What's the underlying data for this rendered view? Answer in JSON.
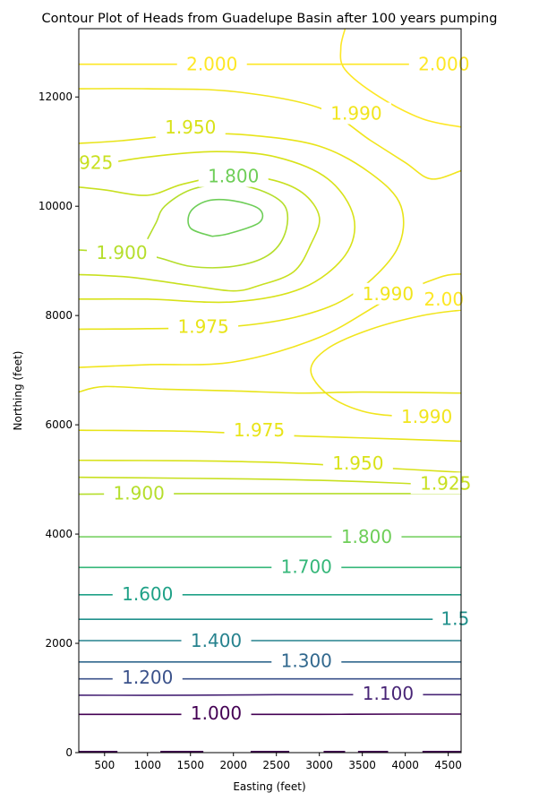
{
  "chart_data": {
    "type": "contour",
    "title": "Contour Plot of Heads from Guadelupe Basin after 100 years pumping",
    "xlabel": "Easting (feet)",
    "ylabel": "Northing (feet)",
    "xlim": [
      200,
      4650
    ],
    "ylim": [
      0,
      13250
    ],
    "xticks": [
      500,
      1000,
      1500,
      2000,
      2500,
      3000,
      3500,
      4000,
      4500
    ],
    "yticks": [
      0,
      2000,
      4000,
      6000,
      8000,
      10000,
      12000
    ],
    "grid": false,
    "colormap": "viridis",
    "colors": {
      "1.000": "#440154",
      "1.100": "#482576",
      "1.200": "#3b528b",
      "1.300": "#31688e",
      "1.400": "#26828e",
      "1.500": "#21918c",
      "1.600": "#1fa187",
      "1.700": "#35b779",
      "1.800": "#6ece58",
      "1.900": "#b5de2b",
      "1.925": "#c8e020",
      "1.950": "#d8e219",
      "1.975": "#e8e419",
      "1.990": "#f1e51d",
      "2.000": "#fde725"
    },
    "contours": [
      {
        "level": "1.000",
        "points": [
          [
            200,
            700
          ],
          [
            1000,
            700
          ],
          [
            2000,
            700
          ],
          [
            3000,
            700
          ],
          [
            4000,
            705
          ],
          [
            4650,
            705
          ]
        ]
      },
      {
        "level": "1.100",
        "points": [
          [
            200,
            1050
          ],
          [
            1500,
            1050
          ],
          [
            2500,
            1060
          ],
          [
            3500,
            1060
          ],
          [
            4650,
            1060
          ]
        ]
      },
      {
        "level": "1.200",
        "points": [
          [
            200,
            1350
          ],
          [
            1500,
            1350
          ],
          [
            2500,
            1350
          ],
          [
            3500,
            1350
          ],
          [
            4650,
            1350
          ]
        ]
      },
      {
        "level": "1.300",
        "points": [
          [
            200,
            1660
          ],
          [
            1500,
            1660
          ],
          [
            2500,
            1660
          ],
          [
            3500,
            1660
          ],
          [
            4650,
            1660
          ]
        ]
      },
      {
        "level": "1.400",
        "points": [
          [
            200,
            2050
          ],
          [
            1500,
            2050
          ],
          [
            2500,
            2050
          ],
          [
            3500,
            2050
          ],
          [
            4650,
            2050
          ]
        ]
      },
      {
        "level": "1.500",
        "points": [
          [
            200,
            2440
          ],
          [
            1500,
            2440
          ],
          [
            2500,
            2440
          ],
          [
            3500,
            2440
          ],
          [
            4650,
            2440
          ]
        ]
      },
      {
        "level": "1.600",
        "points": [
          [
            200,
            2890
          ],
          [
            1500,
            2890
          ],
          [
            2500,
            2890
          ],
          [
            3500,
            2890
          ],
          [
            4650,
            2890
          ]
        ]
      },
      {
        "level": "1.700",
        "points": [
          [
            200,
            3390
          ],
          [
            1500,
            3390
          ],
          [
            2500,
            3390
          ],
          [
            3500,
            3390
          ],
          [
            4650,
            3390
          ]
        ]
      },
      {
        "level": "1.800",
        "points": [
          [
            200,
            3950
          ],
          [
            1500,
            3950
          ],
          [
            2500,
            3950
          ],
          [
            3500,
            3950
          ],
          [
            4650,
            3950
          ]
        ]
      },
      {
        "level": "1.900",
        "points": [
          [
            200,
            4730
          ],
          [
            1500,
            4740
          ],
          [
            2500,
            4740
          ],
          [
            3500,
            4740
          ],
          [
            4650,
            4740
          ]
        ]
      },
      {
        "level": "1.925",
        "points": [
          [
            200,
            5040
          ],
          [
            1500,
            5020
          ],
          [
            2500,
            5000
          ],
          [
            3500,
            4960
          ],
          [
            4650,
            4880
          ]
        ]
      },
      {
        "level": "1.950",
        "points": [
          [
            200,
            5350
          ],
          [
            1500,
            5340
          ],
          [
            2500,
            5310
          ],
          [
            3500,
            5230
          ],
          [
            4650,
            5130
          ]
        ]
      },
      {
        "level": "1.975",
        "points": [
          [
            200,
            5900
          ],
          [
            1500,
            5880
          ],
          [
            2500,
            5810
          ],
          [
            3500,
            5760
          ],
          [
            4650,
            5700
          ]
        ]
      },
      {
        "level": "1.990",
        "points": [
          [
            4650,
            6130
          ],
          [
            4000,
            6150
          ],
          [
            3500,
            6250
          ],
          [
            3100,
            6550
          ],
          [
            2900,
            7000
          ],
          [
            3100,
            7400
          ],
          [
            3600,
            7750
          ],
          [
            4200,
            8000
          ],
          [
            4650,
            8100
          ]
        ]
      },
      {
        "level": "1.975",
        "points": [
          [
            200,
            6600
          ],
          [
            500,
            6700
          ],
          [
            1200,
            6650
          ],
          [
            2000,
            6620
          ],
          [
            2800,
            6580
          ],
          [
            3500,
            6600
          ],
          [
            4650,
            6580
          ]
        ]
      },
      {
        "level": "1.990",
        "points": [
          [
            200,
            7050
          ],
          [
            1000,
            7100
          ],
          [
            2000,
            7150
          ],
          [
            3000,
            7600
          ],
          [
            3800,
            8300
          ],
          [
            4400,
            8700
          ],
          [
            4650,
            8760
          ]
        ]
      },
      {
        "level": "1.975",
        "points": [
          [
            200,
            7750
          ],
          [
            1000,
            7760
          ],
          [
            2000,
            7800
          ],
          [
            2800,
            8000
          ],
          [
            3400,
            8400
          ],
          [
            3900,
            9200
          ],
          [
            3950,
            10000
          ],
          [
            3600,
            10600
          ],
          [
            3000,
            11100
          ],
          [
            2200,
            11300
          ],
          [
            1500,
            11320
          ],
          [
            700,
            11200
          ],
          [
            200,
            11150
          ]
        ]
      },
      {
        "level": "1.950",
        "points": [
          [
            200,
            8300
          ],
          [
            1000,
            8300
          ],
          [
            2000,
            8250
          ],
          [
            2800,
            8500
          ],
          [
            3300,
            9100
          ],
          [
            3400,
            9800
          ],
          [
            3100,
            10500
          ],
          [
            2500,
            10900
          ],
          [
            1800,
            11000
          ],
          [
            1000,
            10900
          ],
          [
            200,
            10700
          ]
        ]
      },
      {
        "level": "1.925",
        "points": [
          [
            200,
            8750
          ],
          [
            800,
            8700
          ],
          [
            1500,
            8550
          ],
          [
            2000,
            8450
          ],
          [
            2300,
            8550
          ],
          [
            2700,
            8800
          ],
          [
            2900,
            9300
          ],
          [
            3000,
            9800
          ],
          [
            2800,
            10250
          ],
          [
            2400,
            10500
          ],
          [
            1900,
            10550
          ],
          [
            1400,
            10400
          ],
          [
            1000,
            10200
          ],
          [
            500,
            10300
          ],
          [
            200,
            10350
          ]
        ]
      },
      {
        "level": "1.900",
        "points": [
          [
            200,
            9200
          ],
          [
            1000,
            9100
          ],
          [
            1500,
            8900
          ],
          [
            2000,
            8900
          ],
          [
            2400,
            9100
          ],
          [
            2600,
            9500
          ],
          [
            2600,
            10000
          ],
          [
            2300,
            10300
          ],
          [
            1900,
            10400
          ],
          [
            1500,
            10300
          ],
          [
            1200,
            10000
          ],
          [
            1100,
            9700
          ],
          [
            1000,
            9400
          ]
        ]
      },
      {
        "level": "1.800",
        "points": [
          [
            1750,
            9450
          ],
          [
            1950,
            9500
          ],
          [
            2300,
            9700
          ],
          [
            2300,
            9950
          ],
          [
            2000,
            10100
          ],
          [
            1700,
            10100
          ],
          [
            1500,
            9900
          ],
          [
            1500,
            9600
          ],
          [
            1750,
            9450
          ]
        ]
      },
      {
        "level": "1.990",
        "points": [
          [
            200,
            12150
          ],
          [
            1000,
            12150
          ],
          [
            2000,
            12100
          ],
          [
            3000,
            11800
          ],
          [
            3600,
            11200
          ],
          [
            4000,
            10800
          ],
          [
            4300,
            10500
          ],
          [
            4650,
            10650
          ]
        ]
      },
      {
        "level": "2.000",
        "points": [
          [
            200,
            12600
          ],
          [
            1000,
            12600
          ],
          [
            2000,
            12600
          ],
          [
            3000,
            12600
          ],
          [
            4000,
            12600
          ],
          [
            4650,
            12600
          ]
        ]
      },
      {
        "level": "2.000",
        "points": [
          [
            3300,
            13250
          ],
          [
            3250,
            12900
          ],
          [
            3300,
            12500
          ],
          [
            3700,
            12000
          ],
          [
            4200,
            11600
          ],
          [
            4650,
            11450
          ]
        ]
      }
    ],
    "labels": [
      {
        "text": "2.000",
        "x": 1750,
        "y": 12600
      },
      {
        "text": "2.000",
        "x": 4450,
        "y": 12600
      },
      {
        "text": "1.990",
        "x": 3430,
        "y": 11700
      },
      {
        "text": "1.950",
        "x": 1500,
        "y": 11450
      },
      {
        "text": "925",
        "x": 400,
        "y": 10800
      },
      {
        "text": "1.800",
        "x": 2000,
        "y": 10550
      },
      {
        "text": "1.900",
        "x": 700,
        "y": 9150
      },
      {
        "text": "1.990",
        "x": 3800,
        "y": 8400
      },
      {
        "text": "2.00",
        "x": 4450,
        "y": 8300
      },
      {
        "text": "1.975",
        "x": 1650,
        "y": 7800
      },
      {
        "text": "1.990",
        "x": 4250,
        "y": 6150
      },
      {
        "text": "1.975",
        "x": 2300,
        "y": 5900
      },
      {
        "text": "1.950",
        "x": 3450,
        "y": 5300
      },
      {
        "text": "1.925",
        "x": 4470,
        "y": 4930
      },
      {
        "text": "1.900",
        "x": 900,
        "y": 4750
      },
      {
        "text": "1.800",
        "x": 3550,
        "y": 3950
      },
      {
        "text": "1.700",
        "x": 2850,
        "y": 3400
      },
      {
        "text": "1.600",
        "x": 1000,
        "y": 2900
      },
      {
        "text": "1.5",
        "x": 4580,
        "y": 2450
      },
      {
        "text": "1.400",
        "x": 1800,
        "y": 2050
      },
      {
        "text": "1.300",
        "x": 2850,
        "y": 1680
      },
      {
        "text": "1.200",
        "x": 1000,
        "y": 1380
      },
      {
        "text": "1.100",
        "x": 3800,
        "y": 1080
      },
      {
        "text": "1.000",
        "x": 1800,
        "y": 720
      }
    ],
    "bottom_dashes": [
      {
        "level": "1.000",
        "x": [
          200,
          650
        ]
      },
      {
        "level": "1.000",
        "x": [
          1150,
          1650
        ]
      },
      {
        "level": "1.000",
        "x": [
          2200,
          2650
        ]
      },
      {
        "level": "1.000",
        "x": [
          3050,
          3300
        ]
      },
      {
        "level": "1.000",
        "x": [
          3450,
          3800
        ]
      },
      {
        "level": "1.000",
        "x": [
          4200,
          4650
        ]
      }
    ]
  }
}
